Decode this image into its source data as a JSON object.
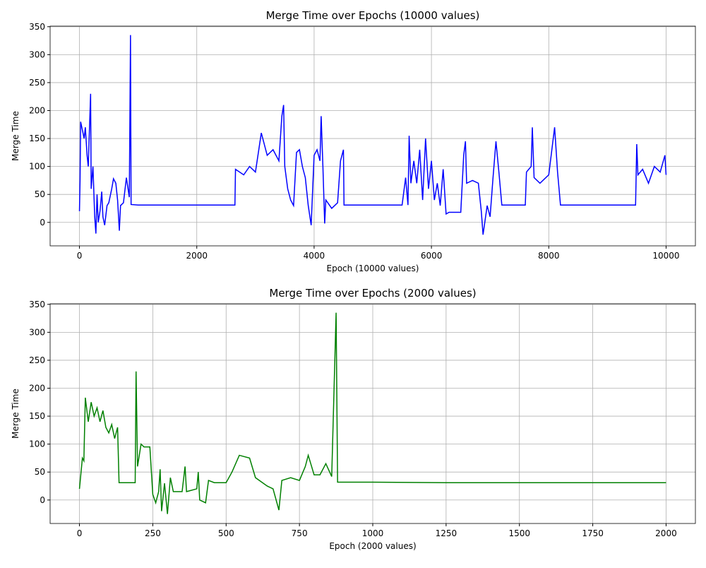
{
  "chart_data": [
    {
      "type": "line",
      "title": "Merge Time over Epochs (10000 values)",
      "xlabel": "Epoch (10000 values)",
      "ylabel": "Merge Time",
      "color": "#0000ff",
      "grid": true,
      "xlim": [
        -500,
        10500
      ],
      "ylim": [
        -42,
        351
      ],
      "xticks": [
        0,
        2000,
        4000,
        6000,
        8000,
        10000
      ],
      "yticks": [
        0,
        50,
        100,
        150,
        200,
        250,
        300,
        350
      ],
      "x": [
        0,
        10,
        20,
        50,
        80,
        100,
        130,
        150,
        190,
        200,
        230,
        260,
        280,
        300,
        320,
        350,
        380,
        400,
        430,
        470,
        500,
        550,
        580,
        620,
        650,
        680,
        700,
        750,
        800,
        850,
        870,
        880,
        1000,
        1500,
        2000,
        2500,
        2650,
        2660,
        2800,
        2900,
        3000,
        3100,
        3200,
        3300,
        3400,
        3450,
        3480,
        3500,
        3550,
        3600,
        3650,
        3700,
        3750,
        3800,
        3850,
        3900,
        3950,
        4000,
        4050,
        4100,
        4120,
        4150,
        4180,
        4200,
        4300,
        4400,
        4450,
        4500,
        4510,
        5000,
        5500,
        5560,
        5600,
        5620,
        5650,
        5700,
        5750,
        5800,
        5850,
        5900,
        5950,
        6000,
        6050,
        6100,
        6150,
        6200,
        6250,
        6300,
        6400,
        6500,
        6550,
        6580,
        6600,
        6700,
        6800,
        6850,
        6880,
        6950,
        7000,
        7050,
        7100,
        7150,
        7200,
        7400,
        7600,
        7620,
        7700,
        7720,
        7750,
        7850,
        8000,
        8100,
        8150,
        8200,
        8500,
        9000,
        9480,
        9500,
        9520,
        9600,
        9700,
        9800,
        9900,
        9980,
        10000
      ],
      "values": [
        20,
        75,
        180,
        165,
        150,
        170,
        120,
        100,
        230,
        60,
        100,
        10,
        -20,
        50,
        0,
        20,
        55,
        10,
        -5,
        30,
        35,
        60,
        78,
        70,
        40,
        -15,
        30,
        35,
        80,
        45,
        335,
        32,
        31,
        31,
        31,
        31,
        31,
        95,
        85,
        100,
        90,
        160,
        120,
        130,
        110,
        190,
        210,
        100,
        60,
        40,
        30,
        125,
        130,
        100,
        80,
        30,
        -5,
        120,
        130,
        110,
        190,
        100,
        -2,
        40,
        25,
        35,
        110,
        130,
        31,
        31,
        31,
        80,
        31,
        155,
        70,
        110,
        70,
        130,
        40,
        150,
        60,
        110,
        40,
        70,
        30,
        95,
        15,
        18,
        18,
        18,
        120,
        145,
        70,
        75,
        70,
        20,
        -22,
        30,
        10,
        80,
        145,
        90,
        31,
        31,
        31,
        90,
        100,
        170,
        80,
        70,
        85,
        170,
        90,
        31,
        31,
        31,
        31,
        140,
        85,
        95,
        70,
        100,
        90,
        120,
        85
      ]
    },
    {
      "type": "line",
      "title": "Merge Time over Epochs (2000 values)",
      "xlabel": "Epoch (2000 values)",
      "ylabel": "Merge Time",
      "color": "#008000",
      "grid": true,
      "xlim": [
        -100,
        2100
      ],
      "ylim": [
        -42,
        351
      ],
      "xticks": [
        0,
        250,
        500,
        750,
        1000,
        1250,
        1500,
        1750,
        2000
      ],
      "yticks": [
        0,
        50,
        100,
        150,
        200,
        250,
        300,
        350
      ],
      "x": [
        0,
        10,
        15,
        20,
        30,
        40,
        50,
        60,
        70,
        80,
        90,
        100,
        110,
        120,
        130,
        135,
        190,
        193,
        198,
        210,
        220,
        240,
        250,
        260,
        270,
        275,
        280,
        290,
        300,
        310,
        320,
        350,
        360,
        365,
        400,
        405,
        410,
        430,
        440,
        460,
        500,
        520,
        545,
        580,
        600,
        640,
        660,
        680,
        690,
        720,
        750,
        770,
        780,
        800,
        820,
        840,
        860,
        875,
        880,
        1000,
        1250,
        1500,
        1750,
        2000
      ],
      "values": [
        20,
        75,
        70,
        183,
        140,
        175,
        150,
        165,
        140,
        160,
        130,
        120,
        135,
        110,
        130,
        31,
        31,
        230,
        60,
        100,
        95,
        95,
        10,
        -5,
        15,
        55,
        -20,
        30,
        -25,
        40,
        15,
        15,
        60,
        15,
        20,
        50,
        0,
        -5,
        35,
        31,
        31,
        50,
        80,
        75,
        40,
        25,
        20,
        -18,
        35,
        40,
        35,
        60,
        80,
        45,
        45,
        65,
        42,
        335,
        32,
        32,
        31,
        31,
        31,
        31
      ]
    }
  ]
}
